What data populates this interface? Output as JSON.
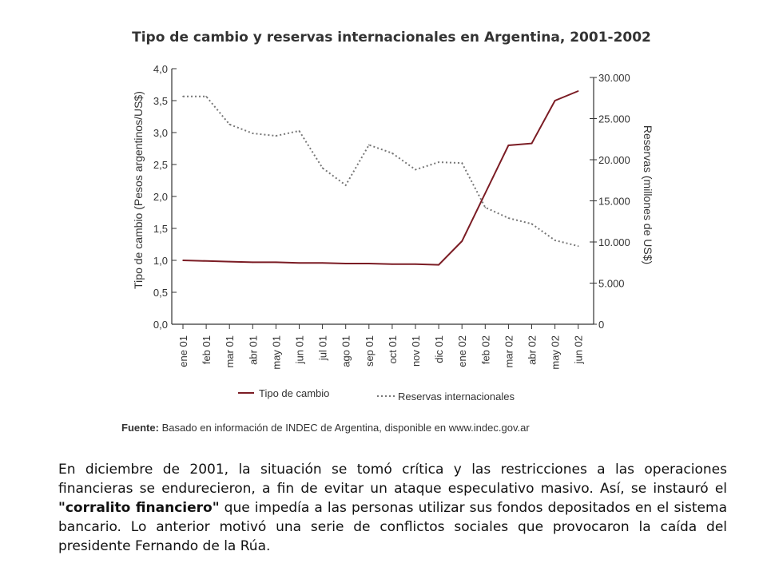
{
  "chart_data": {
    "type": "line",
    "title": "Tipo de cambio y reservas internacionales en Argentina, 2001-2002",
    "categories": [
      "ene 01",
      "feb 01",
      "mar 01",
      "abr 01",
      "may 01",
      "jun 01",
      "jul 01",
      "ago 01",
      "sep 01",
      "oct 01",
      "nov 01",
      "dic 01",
      "ene 02",
      "feb 02",
      "mar 02",
      "abr 02",
      "may 02",
      "jun 02"
    ],
    "ylabel_left": "Tipo de cambio (Pesos argentinos/US$)",
    "ylabel_right": "Reservas (millones de US$)",
    "ylim_left": [
      0,
      4
    ],
    "ylim_right": [
      0,
      30000
    ],
    "yticks_left": [
      "0,0",
      "0,5",
      "1,0",
      "1,5",
      "2,0",
      "2,5",
      "3,0",
      "3,5",
      "4,0"
    ],
    "yticks_right": [
      "0",
      "5.000",
      "10.000",
      "15.000",
      "20.000",
      "25.000",
      "30.000"
    ],
    "series": [
      {
        "name": "Tipo de cambio",
        "axis": "left",
        "color": "#7b1c24",
        "style": "solid",
        "values": [
          1.0,
          0.99,
          0.98,
          0.97,
          0.97,
          0.96,
          0.96,
          0.95,
          0.95,
          0.94,
          0.94,
          0.93,
          1.3,
          2.05,
          2.8,
          2.83,
          3.5,
          3.65
        ]
      },
      {
        "name": "Reservas internacionales",
        "axis": "right",
        "color": "#777777",
        "style": "dotted",
        "values": [
          27700,
          27700,
          24300,
          23200,
          22900,
          23500,
          19000,
          16900,
          21800,
          20800,
          18800,
          19700,
          19600,
          14200,
          12900,
          12200,
          10200,
          9500
        ]
      }
    ],
    "grid": false,
    "legend_position": "bottom"
  },
  "legend": {
    "series1": "Tipo de cambio",
    "series2": "Reservas internacionales"
  },
  "source": {
    "label": "Fuente:",
    "text": " Basado en información de INDEC de Argentina, disponible en www.indec.gov.ar"
  },
  "paragraph": {
    "part1": "En diciembre de 2001, la situación se tomó crítica y las restricciones a las operaciones financieras se endurecieron, a fin de evitar un ataque especulativo masivo. Así, se instauró el ",
    "bold": "\"corralito financiero\"",
    "part2": " que impedía a las personas utilizar sus fondos depositados en el sistema bancario. Lo anterior motivó una serie de conflictos sociales que provocaron la caída del presidente Fernando de la Rúa."
  }
}
